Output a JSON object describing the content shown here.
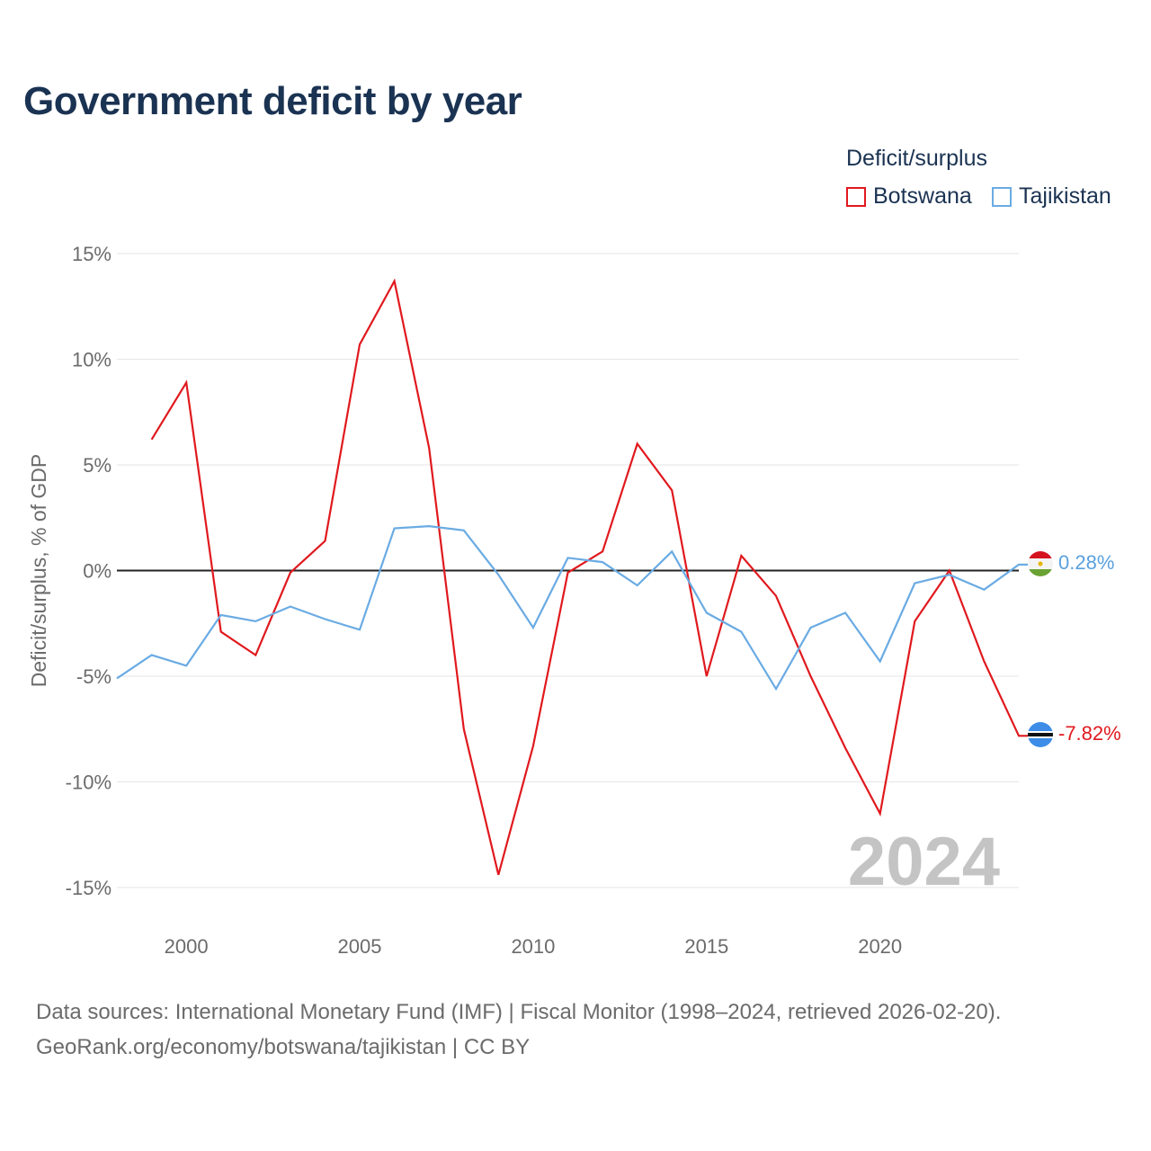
{
  "title": "Government deficit by year",
  "legend": {
    "title": "Deficit/surplus",
    "items": [
      {
        "label": "Botswana",
        "color": "#e0191e"
      },
      {
        "label": "Tajikistan",
        "color": "#6aabe3"
      }
    ]
  },
  "chart_data": {
    "type": "line",
    "title": "Government deficit by year",
    "xlabel": "",
    "ylabel": "Deficit/surplus, % of GDP",
    "xlim": [
      1998,
      2024
    ],
    "ylim": [
      -15,
      15
    ],
    "yticks": [
      15,
      10,
      5,
      0,
      -5,
      -10,
      -15
    ],
    "ytick_labels": [
      "15%",
      "10%",
      "5%",
      "0%",
      "-5%",
      "-10%",
      "-15%"
    ],
    "xticks": [
      2000,
      2005,
      2010,
      2015,
      2020
    ],
    "xtick_labels": [
      "2000",
      "2005",
      "2010",
      "2015",
      "2020"
    ],
    "grid": true,
    "current_year_label": "2024",
    "series": [
      {
        "name": "Botswana",
        "color": "#e0191e",
        "x": [
          1999,
          2000,
          2001,
          2002,
          2003,
          2004,
          2005,
          2006,
          2007,
          2008,
          2009,
          2010,
          2011,
          2012,
          2013,
          2014,
          2015,
          2016,
          2017,
          2018,
          2019,
          2020,
          2021,
          2022,
          2023,
          2024
        ],
        "values": [
          6.2,
          8.9,
          -2.9,
          -4.0,
          -0.1,
          1.4,
          10.7,
          13.7,
          5.8,
          -7.5,
          -14.4,
          -8.3,
          -0.1,
          0.9,
          6.0,
          3.8,
          -5.0,
          0.7,
          -1.2,
          -5.0,
          -8.4,
          -11.5,
          -2.4,
          0.0,
          -4.3,
          -7.82
        ],
        "end_label": "-7.82%"
      },
      {
        "name": "Tajikistan",
        "color": "#6aabe3",
        "x": [
          1998,
          1999,
          2000,
          2001,
          2002,
          2003,
          2004,
          2005,
          2006,
          2007,
          2008,
          2009,
          2010,
          2011,
          2012,
          2013,
          2014,
          2015,
          2016,
          2017,
          2018,
          2019,
          2020,
          2021,
          2022,
          2023,
          2024
        ],
        "values": [
          -5.1,
          -4.0,
          -4.5,
          -2.1,
          -2.4,
          -1.7,
          -2.3,
          -2.8,
          2.0,
          2.1,
          1.9,
          -0.2,
          -2.7,
          0.6,
          0.4,
          -0.7,
          0.9,
          -2.0,
          -2.9,
          -5.6,
          -2.7,
          -2.0,
          -4.3,
          -0.6,
          -0.2,
          -0.9,
          0.28
        ],
        "end_label": "0.28%"
      }
    ]
  },
  "footer": {
    "line1": "Data sources: International Monetary Fund (IMF) | Fiscal Monitor (1998–2024, retrieved 2026-02-20).",
    "line2": "GeoRank.org/economy/botswana/tajikistan | CC BY"
  }
}
